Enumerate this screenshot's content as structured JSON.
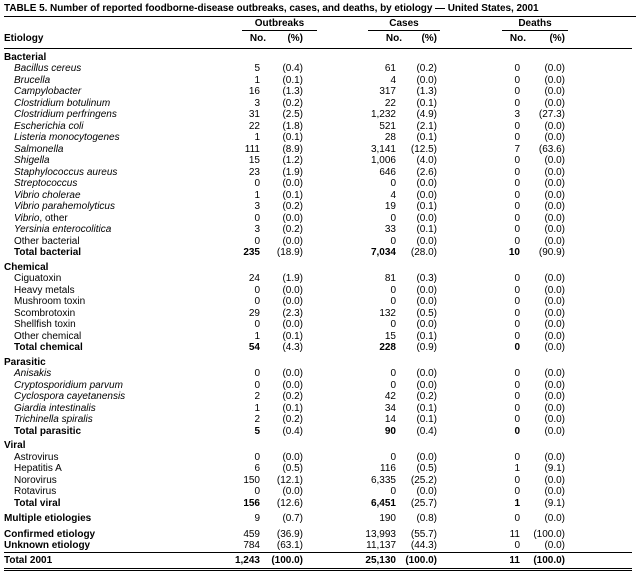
{
  "table": {
    "title": "TABLE 5. Number of reported foodborne-disease outbreaks, cases, and deaths, by etiology — United States, 2001",
    "column_groups": [
      "Outbreaks",
      "Cases",
      "Deaths"
    ],
    "row_header": "Etiology",
    "sub_headers": {
      "no": "No.",
      "pct": "(%)"
    },
    "sections": [
      {
        "name": "Bacterial",
        "rows": [
          {
            "label": "Bacillus cereus",
            "italic": true,
            "outbreaks_no": "5",
            "outbreaks_pct": "(0.4)",
            "cases_no": "61",
            "cases_pct": "(0.2)",
            "deaths_no": "0",
            "deaths_pct": "(0.0)"
          },
          {
            "label": "Brucella",
            "italic": true,
            "outbreaks_no": "1",
            "outbreaks_pct": "(0.1)",
            "cases_no": "4",
            "cases_pct": "(0.0)",
            "deaths_no": "0",
            "deaths_pct": "(0.0)"
          },
          {
            "label": "Campylobacter",
            "italic": true,
            "outbreaks_no": "16",
            "outbreaks_pct": "(1.3)",
            "cases_no": "317",
            "cases_pct": "(1.3)",
            "deaths_no": "0",
            "deaths_pct": "(0.0)"
          },
          {
            "label": "Clostridium botulinum",
            "italic": true,
            "outbreaks_no": "3",
            "outbreaks_pct": "(0.2)",
            "cases_no": "22",
            "cases_pct": "(0.1)",
            "deaths_no": "0",
            "deaths_pct": "(0.0)"
          },
          {
            "label": "Clostridium perfringens",
            "italic": true,
            "outbreaks_no": "31",
            "outbreaks_pct": "(2.5)",
            "cases_no": "1,232",
            "cases_pct": "(4.9)",
            "deaths_no": "3",
            "deaths_pct": "(27.3)"
          },
          {
            "label": "Escherichia coli",
            "italic": true,
            "outbreaks_no": "22",
            "outbreaks_pct": "(1.8)",
            "cases_no": "521",
            "cases_pct": "(2.1)",
            "deaths_no": "0",
            "deaths_pct": "(0.0)"
          },
          {
            "label": "Listeria monocytogenes",
            "italic": true,
            "outbreaks_no": "1",
            "outbreaks_pct": "(0.1)",
            "cases_no": "28",
            "cases_pct": "(0.1)",
            "deaths_no": "0",
            "deaths_pct": "(0.0)"
          },
          {
            "label": "Salmonella",
            "italic": true,
            "outbreaks_no": "111",
            "outbreaks_pct": "(8.9)",
            "cases_no": "3,141",
            "cases_pct": "(12.5)",
            "deaths_no": "7",
            "deaths_pct": "(63.6)"
          },
          {
            "label": "Shigella",
            "italic": true,
            "outbreaks_no": "15",
            "outbreaks_pct": "(1.2)",
            "cases_no": "1,006",
            "cases_pct": "(4.0)",
            "deaths_no": "0",
            "deaths_pct": "(0.0)"
          },
          {
            "label": "Staphylococcus aureus",
            "italic": true,
            "outbreaks_no": "23",
            "outbreaks_pct": "(1.9)",
            "cases_no": "646",
            "cases_pct": "(2.6)",
            "deaths_no": "0",
            "deaths_pct": "(0.0)"
          },
          {
            "label": "Streptococcus",
            "italic": true,
            "outbreaks_no": "0",
            "outbreaks_pct": "(0.0)",
            "cases_no": "0",
            "cases_pct": "(0.0)",
            "deaths_no": "0",
            "deaths_pct": "(0.0)"
          },
          {
            "label": "Vibrio cholerae",
            "italic": true,
            "outbreaks_no": "1",
            "outbreaks_pct": "(0.1)",
            "cases_no": "4",
            "cases_pct": "(0.0)",
            "deaths_no": "0",
            "deaths_pct": "(0.0)"
          },
          {
            "label": "Vibrio parahemolyticus",
            "italic": true,
            "outbreaks_no": "3",
            "outbreaks_pct": "(0.2)",
            "cases_no": "19",
            "cases_pct": "(0.1)",
            "deaths_no": "0",
            "deaths_pct": "(0.0)"
          },
          {
            "label": "Vibrio",
            "label_suffix": ", other",
            "italic": true,
            "outbreaks_no": "0",
            "outbreaks_pct": "(0.0)",
            "cases_no": "0",
            "cases_pct": "(0.0)",
            "deaths_no": "0",
            "deaths_pct": "(0.0)"
          },
          {
            "label": "Yersinia enterocolitica",
            "italic": true,
            "outbreaks_no": "3",
            "outbreaks_pct": "(0.2)",
            "cases_no": "33",
            "cases_pct": "(0.1)",
            "deaths_no": "0",
            "deaths_pct": "(0.0)"
          },
          {
            "label": "Other bacterial",
            "italic": false,
            "outbreaks_no": "0",
            "outbreaks_pct": "(0.0)",
            "cases_no": "0",
            "cases_pct": "(0.0)",
            "deaths_no": "0",
            "deaths_pct": "(0.0)"
          },
          {
            "label": "Total bacterial",
            "italic": false,
            "total": true,
            "outbreaks_no": "235",
            "outbreaks_pct": "(18.9)",
            "cases_no": "7,034",
            "cases_pct": "(28.0)",
            "deaths_no": "10",
            "deaths_pct": "(90.9)"
          }
        ]
      },
      {
        "name": "Chemical",
        "rows": [
          {
            "label": "Ciguatoxin",
            "italic": false,
            "outbreaks_no": "24",
            "outbreaks_pct": "(1.9)",
            "cases_no": "81",
            "cases_pct": "(0.3)",
            "deaths_no": "0",
            "deaths_pct": "(0.0)"
          },
          {
            "label": "Heavy metals",
            "italic": false,
            "outbreaks_no": "0",
            "outbreaks_pct": "(0.0)",
            "cases_no": "0",
            "cases_pct": "(0.0)",
            "deaths_no": "0",
            "deaths_pct": "(0.0)"
          },
          {
            "label": "Mushroom toxin",
            "italic": false,
            "outbreaks_no": "0",
            "outbreaks_pct": "(0.0)",
            "cases_no": "0",
            "cases_pct": "(0.0)",
            "deaths_no": "0",
            "deaths_pct": "(0.0)"
          },
          {
            "label": "Scombrotoxin",
            "italic": false,
            "outbreaks_no": "29",
            "outbreaks_pct": "(2.3)",
            "cases_no": "132",
            "cases_pct": "(0.5)",
            "deaths_no": "0",
            "deaths_pct": "(0.0)"
          },
          {
            "label": "Shellfish toxin",
            "italic": false,
            "outbreaks_no": "0",
            "outbreaks_pct": "(0.0)",
            "cases_no": "0",
            "cases_pct": "(0.0)",
            "deaths_no": "0",
            "deaths_pct": "(0.0)"
          },
          {
            "label": "Other chemical",
            "italic": false,
            "outbreaks_no": "1",
            "outbreaks_pct": "(0.1)",
            "cases_no": "15",
            "cases_pct": "(0.1)",
            "deaths_no": "0",
            "deaths_pct": "(0.0)"
          },
          {
            "label": "Total chemical",
            "italic": false,
            "total": true,
            "outbreaks_no": "54",
            "outbreaks_pct": "(4.3)",
            "cases_no": "228",
            "cases_pct": "(0.9)",
            "deaths_no": "0",
            "deaths_pct": "(0.0)"
          }
        ]
      },
      {
        "name": "Parasitic",
        "rows": [
          {
            "label": "Anisakis",
            "italic": true,
            "outbreaks_no": "0",
            "outbreaks_pct": "(0.0)",
            "cases_no": "0",
            "cases_pct": "(0.0)",
            "deaths_no": "0",
            "deaths_pct": "(0.0)"
          },
          {
            "label": "Cryptosporidium parvum",
            "italic": true,
            "outbreaks_no": "0",
            "outbreaks_pct": "(0.0)",
            "cases_no": "0",
            "cases_pct": "(0.0)",
            "deaths_no": "0",
            "deaths_pct": "(0.0)"
          },
          {
            "label": "Cyclospora cayetanensis",
            "italic": true,
            "outbreaks_no": "2",
            "outbreaks_pct": "(0.2)",
            "cases_no": "42",
            "cases_pct": "(0.2)",
            "deaths_no": "0",
            "deaths_pct": "(0.0)"
          },
          {
            "label": "Giardia intestinalis",
            "italic": true,
            "outbreaks_no": "1",
            "outbreaks_pct": "(0.1)",
            "cases_no": "34",
            "cases_pct": "(0.1)",
            "deaths_no": "0",
            "deaths_pct": "(0.0)"
          },
          {
            "label": "Trichinella spiralis",
            "italic": true,
            "outbreaks_no": "2",
            "outbreaks_pct": "(0.2)",
            "cases_no": "14",
            "cases_pct": "(0.1)",
            "deaths_no": "0",
            "deaths_pct": "(0.0)"
          },
          {
            "label": "Total parasitic",
            "italic": false,
            "total": true,
            "outbreaks_no": "5",
            "outbreaks_pct": "(0.4)",
            "cases_no": "90",
            "cases_pct": "(0.4)",
            "deaths_no": "0",
            "deaths_pct": "(0.0)"
          }
        ]
      },
      {
        "name": "Viral",
        "rows": [
          {
            "label": "Astrovirus",
            "italic": false,
            "outbreaks_no": "0",
            "outbreaks_pct": "(0.0)",
            "cases_no": "0",
            "cases_pct": "(0.0)",
            "deaths_no": "0",
            "deaths_pct": "(0.0)"
          },
          {
            "label": "Hepatitis A",
            "italic": false,
            "outbreaks_no": "6",
            "outbreaks_pct": "(0.5)",
            "cases_no": "116",
            "cases_pct": "(0.5)",
            "deaths_no": "1",
            "deaths_pct": "(9.1)"
          },
          {
            "label": "Norovirus",
            "italic": false,
            "outbreaks_no": "150",
            "outbreaks_pct": "(12.1)",
            "cases_no": "6,335",
            "cases_pct": "(25.2)",
            "deaths_no": "0",
            "deaths_pct": "(0.0)"
          },
          {
            "label": "Rotavirus",
            "italic": false,
            "outbreaks_no": "0",
            "outbreaks_pct": "(0.0)",
            "cases_no": "0",
            "cases_pct": "(0.0)",
            "deaths_no": "0",
            "deaths_pct": "(0.0)"
          },
          {
            "label": "Total viral",
            "italic": false,
            "total": true,
            "outbreaks_no": "156",
            "outbreaks_pct": "(12.6)",
            "cases_no": "6,451",
            "cases_pct": "(25.7)",
            "deaths_no": "1",
            "deaths_pct": "(9.1)"
          }
        ]
      }
    ],
    "summary_rows": [
      {
        "label": "Multiple etiologies",
        "gap_above": true,
        "outbreaks_no": "9",
        "outbreaks_pct": "(0.7)",
        "cases_no": "190",
        "cases_pct": "(0.8)",
        "deaths_no": "0",
        "deaths_pct": "(0.0)"
      },
      {
        "label": "Confirmed etiology",
        "gap_above": true,
        "outbreaks_no": "459",
        "outbreaks_pct": "(36.9)",
        "cases_no": "13,993",
        "cases_pct": "(55.7)",
        "deaths_no": "11",
        "deaths_pct": "(100.0)"
      },
      {
        "label": "Unknown etiology",
        "outbreaks_no": "784",
        "outbreaks_pct": "(63.1)",
        "cases_no": "11,137",
        "cases_pct": "(44.3)",
        "deaths_no": "0",
        "deaths_pct": "(0.0)"
      },
      {
        "label": "Total 2001",
        "grand_total": true,
        "rule_above": true,
        "outbreaks_no": "1,243",
        "outbreaks_pct": "(100.0)",
        "cases_no": "25,130",
        "cases_pct": "(100.0)",
        "deaths_no": "11",
        "deaths_pct": "(100.0)"
      }
    ]
  }
}
